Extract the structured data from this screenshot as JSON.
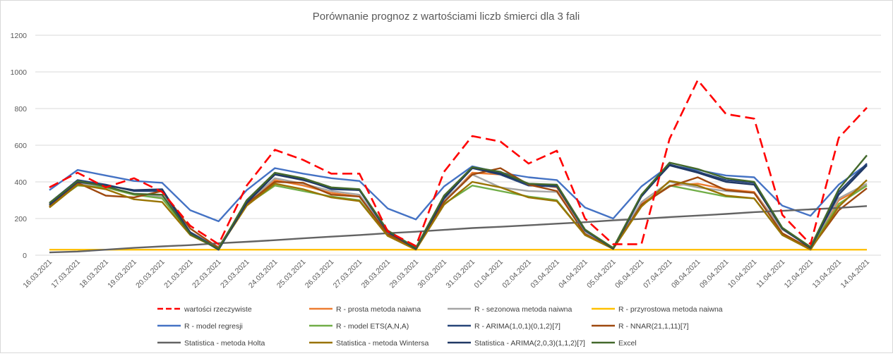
{
  "chart_data": {
    "type": "line",
    "title": "Porównanie prognoz z wartościami liczb śmierci dla 3 fali",
    "xlabel": "",
    "ylabel": "",
    "ylim": [
      0,
      1200
    ],
    "yticks": [
      0,
      200,
      400,
      600,
      800,
      1000,
      1200
    ],
    "grid": true,
    "legend_position": "bottom",
    "categories": [
      "16.03.2021",
      "17.03.2021",
      "18.03.2021",
      "19.03.2021",
      "20.03.2021",
      "21.03.2021",
      "22.03.2021",
      "23.03.2021",
      "24.03.2021",
      "25.03.2021",
      "26.03.2021",
      "27.03.2021",
      "28.03.2021",
      "29.03.2021",
      "30.03.2021",
      "31.03.2021",
      "01.04.2021",
      "02.04.2021",
      "03.04.2021",
      "04.04.2021",
      "05.04.2021",
      "06.04.2021",
      "07.04.2021",
      "08.04.2021",
      "09.04.2021",
      "10.04.2021",
      "11.04.2021",
      "12.04.2021",
      "13.04.2021",
      "14.04.2021"
    ],
    "series": [
      {
        "name": "wartości rzeczywiste",
        "color": "#ff0000",
        "dash": true,
        "values": [
          370,
          450,
          370,
          420,
          345,
          160,
          60,
          380,
          575,
          520,
          445,
          445,
          130,
          50,
          455,
          650,
          620,
          500,
          570,
          200,
          60,
          60,
          635,
          955,
          770,
          745,
          220,
          60,
          640,
          805
        ]
      },
      {
        "name": "R - prosta metoda naiwna",
        "color": "#ed7d31",
        "dash": false,
        "values": [
          275,
          390,
          370,
          330,
          320,
          120,
          45,
          280,
          410,
          380,
          340,
          320,
          120,
          40,
          290,
          450,
          440,
          390,
          370,
          130,
          40,
          280,
          380,
          390,
          360,
          345,
          140,
          45,
          300,
          380
        ]
      },
      {
        "name": "R - sezonowa metoda naiwna",
        "color": "#a5a5a5",
        "dash": false,
        "values": [
          280,
          395,
          370,
          335,
          320,
          125,
          45,
          285,
          420,
          390,
          350,
          330,
          125,
          40,
          300,
          440,
          370,
          350,
          345,
          125,
          40,
          290,
          400,
          370,
          350,
          340,
          140,
          45,
          310,
          390
        ]
      },
      {
        "name": "R - przyrostowa metoda naiwna",
        "color": "#ffc000",
        "dash": false,
        "values": [
          30,
          30,
          30,
          30,
          30,
          30,
          30,
          30,
          30,
          30,
          30,
          30,
          30,
          30,
          30,
          30,
          30,
          30,
          30,
          30,
          30,
          30,
          30,
          30,
          30,
          30,
          30,
          30,
          30,
          30
        ]
      },
      {
        "name": "R - model regresji",
        "color": "#4472c4",
        "dash": false,
        "values": [
          355,
          465,
          435,
          405,
          395,
          245,
          185,
          355,
          475,
          445,
          420,
          405,
          255,
          195,
          375,
          485,
          450,
          425,
          410,
          260,
          200,
          375,
          490,
          465,
          435,
          425,
          270,
          215,
          385,
          495
        ]
      },
      {
        "name": "R - model ETS(A,N,A)",
        "color": "#70ad47",
        "dash": false,
        "values": [
          270,
          380,
          370,
          330,
          310,
          115,
          40,
          275,
          380,
          350,
          320,
          300,
          110,
          35,
          280,
          380,
          350,
          320,
          300,
          110,
          35,
          270,
          380,
          350,
          320,
          310,
          110,
          35,
          280,
          380
        ]
      },
      {
        "name": "R - ARIMA(1,0,1)(0,1,2)[7]",
        "color": "#264478",
        "dash": false,
        "values": [
          285,
          410,
          385,
          350,
          350,
          125,
          35,
          295,
          440,
          415,
          360,
          355,
          125,
          35,
          315,
          475,
          440,
          380,
          375,
          135,
          35,
          320,
          495,
          455,
          410,
          395,
          145,
          40,
          345,
          500
        ]
      },
      {
        "name": "R - NNAR(21,1,11)[7]",
        "color": "#9e480e",
        "dash": false,
        "values": [
          265,
          395,
          325,
          315,
          350,
          145,
          40,
          280,
          400,
          395,
          330,
          320,
          115,
          35,
          290,
          440,
          475,
          385,
          350,
          115,
          35,
          275,
          375,
          425,
          355,
          340,
          120,
          35,
          245,
          365
        ]
      },
      {
        "name": "Statistica - metoda Holta",
        "color": "#636363",
        "dash": false,
        "values": [
          15,
          20,
          30,
          40,
          48,
          55,
          65,
          73,
          82,
          92,
          101,
          110,
          120,
          128,
          138,
          148,
          155,
          163,
          172,
          180,
          190,
          198,
          208,
          216,
          225,
          235,
          242,
          250,
          258,
          268
        ]
      },
      {
        "name": "Statistica - metoda Wintersa",
        "color": "#997300",
        "dash": false,
        "values": [
          260,
          385,
          360,
          305,
          290,
          110,
          35,
          270,
          390,
          360,
          315,
          295,
          105,
          30,
          275,
          400,
          370,
          315,
          295,
          110,
          35,
          265,
          405,
          380,
          325,
          310,
          110,
          30,
          265,
          410
        ]
      },
      {
        "name": "Statistica - ARIMA(2,0,3)(1,1,2)[7]",
        "color": "#203864",
        "dash": false,
        "values": [
          275,
          400,
          380,
          355,
          360,
          120,
          30,
          285,
          440,
          410,
          365,
          355,
          130,
          35,
          310,
          475,
          445,
          390,
          380,
          140,
          35,
          325,
          490,
          450,
          400,
          385,
          145,
          40,
          330,
          490
        ]
      },
      {
        "name": "Excel",
        "color": "#43682b",
        "dash": false,
        "values": [
          285,
          405,
          375,
          335,
          330,
          115,
          35,
          300,
          450,
          420,
          370,
          360,
          135,
          40,
          325,
          480,
          455,
          390,
          385,
          140,
          40,
          330,
          505,
          470,
          420,
          400,
          150,
          45,
          360,
          545
        ]
      }
    ]
  }
}
